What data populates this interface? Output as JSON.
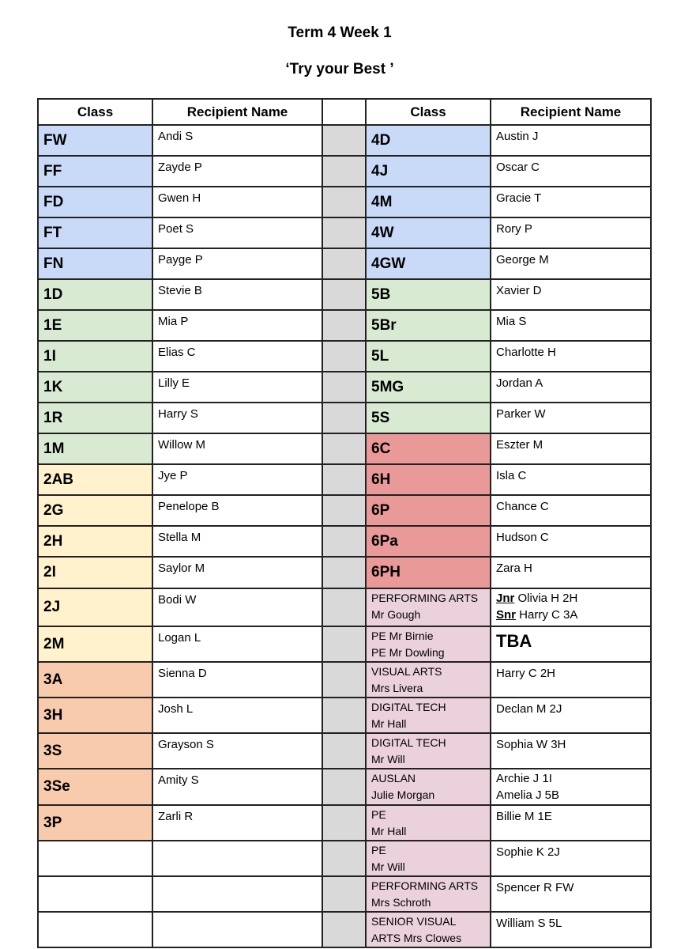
{
  "title": "Term 4 Week 1",
  "subtitle": "‘Try your Best ’",
  "headers": {
    "class": "Class",
    "recipient": "Recipient Name"
  },
  "colors": {
    "blue": "#c9daf8",
    "green": "#d9ead3",
    "yellow": "#fff2cc",
    "orange": "#f8cbad",
    "red": "#ea9999",
    "pink": "#ead1dc",
    "gap": "#d9d9d9"
  },
  "rows": [
    {
      "lc": "FW",
      "ln": "Andi S",
      "rc": "4D",
      "rn": "Austin J"
    },
    {
      "lc": "FF",
      "ln": "Zayde P",
      "rc": "4J",
      "rn": "Oscar C"
    },
    {
      "lc": "FD",
      "ln": "Gwen H",
      "rc": "4M",
      "rn": "Gracie T"
    },
    {
      "lc": "FT",
      "ln": "Poet S",
      "rc": "4W",
      "rn": "Rory P"
    },
    {
      "lc": "FN",
      "ln": "Payge P",
      "rc": "4GW",
      "rn": "George M"
    },
    {
      "lc": "1D",
      "ln": "Stevie B",
      "rc": "5B",
      "rn": "Xavier D"
    },
    {
      "lc": "1E",
      "ln": "Mia P",
      "rc": "5Br",
      "rn": "Mia S"
    },
    {
      "lc": "1I",
      "ln": "Elias C",
      "rc": "5L",
      "rn": "Charlotte H"
    },
    {
      "lc": "1K",
      "ln": "Lilly E",
      "rc": "5MG",
      "rn": "Jordan A"
    },
    {
      "lc": "1R",
      "ln": "Harry S",
      "rc": "5S",
      "rn": "Parker W"
    },
    {
      "lc": "1M",
      "ln": "Willow M",
      "rc": "6C",
      "rn": "Eszter M"
    },
    {
      "lc": "2AB",
      "ln": "Jye P",
      "rc": "6H",
      "rn": "Isla C"
    },
    {
      "lc": "2G",
      "ln": "Penelope B",
      "rc": "6P",
      "rn": "Chance C"
    },
    {
      "lc": "2H",
      "ln": "Stella M",
      "rc": "6Pa",
      "rn": "Hudson C"
    },
    {
      "lc": "2I",
      "ln": "Saylor M",
      "rc": "6PH",
      "rn": "Zara H"
    },
    {
      "lc": "2J",
      "ln": "Bodi W",
      "rc1": "PERFORMING ARTS",
      "rc2": "Mr Gough",
      "rn1a": "Jnr",
      "rn1b": " Olivia H 2H",
      "rn2a": "Snr",
      "rn2b": " Harry C 3A"
    },
    {
      "lc": "2M",
      "ln": "Logan L",
      "rc1": "PE Mr Birnie",
      "rc2": "PE Mr Dowling",
      "rn": "TBA"
    },
    {
      "lc": "3A",
      "ln": "Sienna D",
      "rc1": "VISUAL ARTS",
      "rc2": "Mrs Livera",
      "rn": "Harry C 2H"
    },
    {
      "lc": "3H",
      "ln": "Josh L",
      "rc1": "DIGITAL TECH",
      "rc2": "Mr Hall",
      "rn": "Declan M 2J"
    },
    {
      "lc": "3S",
      "ln": "Grayson S",
      "rc1": "DIGITAL TECH",
      "rc2": "Mr Will",
      "rn": "Sophia W 3H"
    },
    {
      "lc": "3Se",
      "ln": "Amity S",
      "rc1": "AUSLAN",
      "rc2": "Julie Morgan",
      "rn1": "Archie J 1I",
      "rn2": "Amelia J 5B"
    },
    {
      "lc": "3P",
      "ln": "Zarli R",
      "rc1": "PE",
      "rc2": "Mr Hall",
      "rn": "Billie M 1E"
    },
    {
      "rc1": "PE",
      "rc2": "Mr Will",
      "rn": "Sophie K 2J"
    },
    {
      "rc1": "PERFORMING ARTS",
      "rc2": "Mrs Schroth",
      "rn": "Spencer R FW"
    },
    {
      "rc1": "SENIOR VISUAL",
      "rc2": "ARTS Mrs Clowes",
      "rn": "William S 5L"
    }
  ]
}
